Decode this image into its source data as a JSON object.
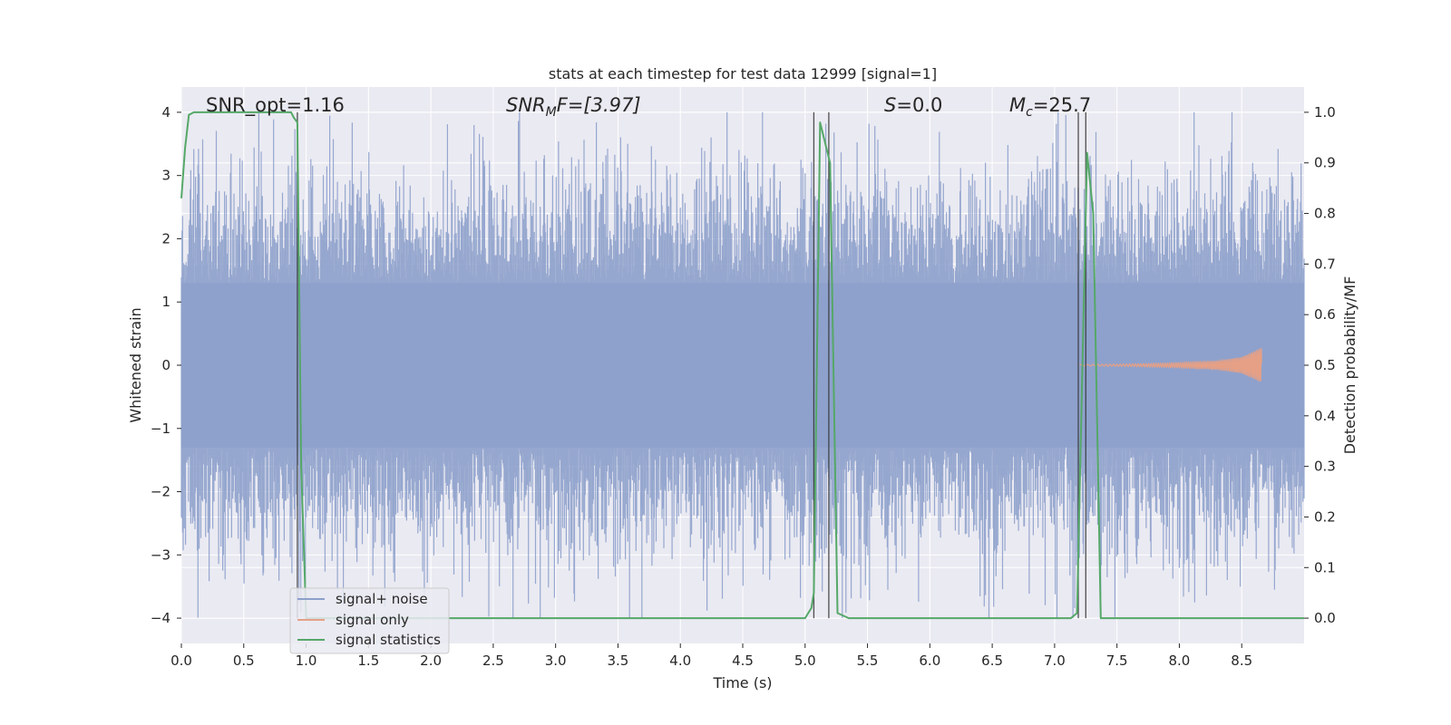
{
  "chart_data": {
    "type": "line",
    "title": "stats at each timestep for test data 12999 [signal=1]",
    "xlabel": "Time (s)",
    "ylabel_left": "Whitened strain",
    "ylabel_right": "Detection probability/MF",
    "xlim": [
      0,
      9.0
    ],
    "ylim_left": [
      -4.4,
      4.4
    ],
    "ylim_right": [
      -0.05,
      1.05
    ],
    "x_ticks": [
      "0.0",
      "0.5",
      "1.0",
      "1.5",
      "2.0",
      "2.5",
      "3.0",
      "3.5",
      "4.0",
      "4.5",
      "5.0",
      "5.5",
      "6.0",
      "6.5",
      "7.0",
      "7.5",
      "8.0",
      "8.5"
    ],
    "y_left_ticks": [
      "−4",
      "−3",
      "−2",
      "−1",
      "0",
      "1",
      "2",
      "3",
      "4"
    ],
    "y_right_ticks": [
      "0.0",
      "0.1",
      "0.2",
      "0.3",
      "0.4",
      "0.5",
      "0.6",
      "0.7",
      "0.8",
      "0.9",
      "1.0"
    ],
    "grid": true,
    "legend_position": "lower-left",
    "annotations": {
      "snr_opt": "SNR_opt=1.16",
      "snr_mf_prefix": "SNR",
      "snr_mf_sub": "M",
      "snr_mf_suffix": "F=[3.97]",
      "s_var": "S",
      "s_val": "=0.0",
      "mc_var": "M",
      "mc_sub": "c",
      "mc_val": "=25.7"
    },
    "series": [
      {
        "name": "signal+ noise",
        "color": "#8da0cb",
        "note_range": [
          -4.0,
          4.0
        ],
        "x_range": [
          0.0,
          9.0
        ]
      },
      {
        "name": "signal only",
        "color": "#e5a086",
        "envelope": {
          "x": [
            7.2,
            7.6,
            8.0,
            8.3,
            8.5,
            8.6,
            8.66
          ],
          "amp": [
            0.01,
            0.02,
            0.04,
            0.07,
            0.13,
            0.22,
            0.28
          ]
        }
      },
      {
        "name": "signal statistics",
        "color": "#55a868",
        "x": [
          0.0,
          0.03,
          0.06,
          0.1,
          0.15,
          0.2,
          0.3,
          0.5,
          0.7,
          0.85,
          0.88,
          0.9,
          0.93,
          0.96,
          1.0,
          2.0,
          3.0,
          4.0,
          5.0,
          5.05,
          5.07,
          5.12,
          5.2,
          5.26,
          5.35,
          5.45,
          6.0,
          7.0,
          7.13,
          7.18,
          7.26,
          7.31,
          7.37,
          7.5,
          8.0,
          8.5,
          8.7,
          9.0
        ],
        "y": [
          0.83,
          0.93,
          0.995,
          1.0,
          1.0,
          1.0,
          1.0,
          1.0,
          1.0,
          1.0,
          1.0,
          0.99,
          0.98,
          0.3,
          0.0,
          0.0,
          0.0,
          0.0,
          0.0,
          0.02,
          0.05,
          0.98,
          0.9,
          0.01,
          0.0,
          0.0,
          0.0,
          0.0,
          0.0,
          0.01,
          0.92,
          0.8,
          0.0,
          0.0,
          0.0,
          0.0,
          0.0,
          0.0
        ]
      }
    ],
    "detection_lines_x": [
      0.93,
      5.07,
      5.19,
      7.19,
      7.25
    ]
  }
}
